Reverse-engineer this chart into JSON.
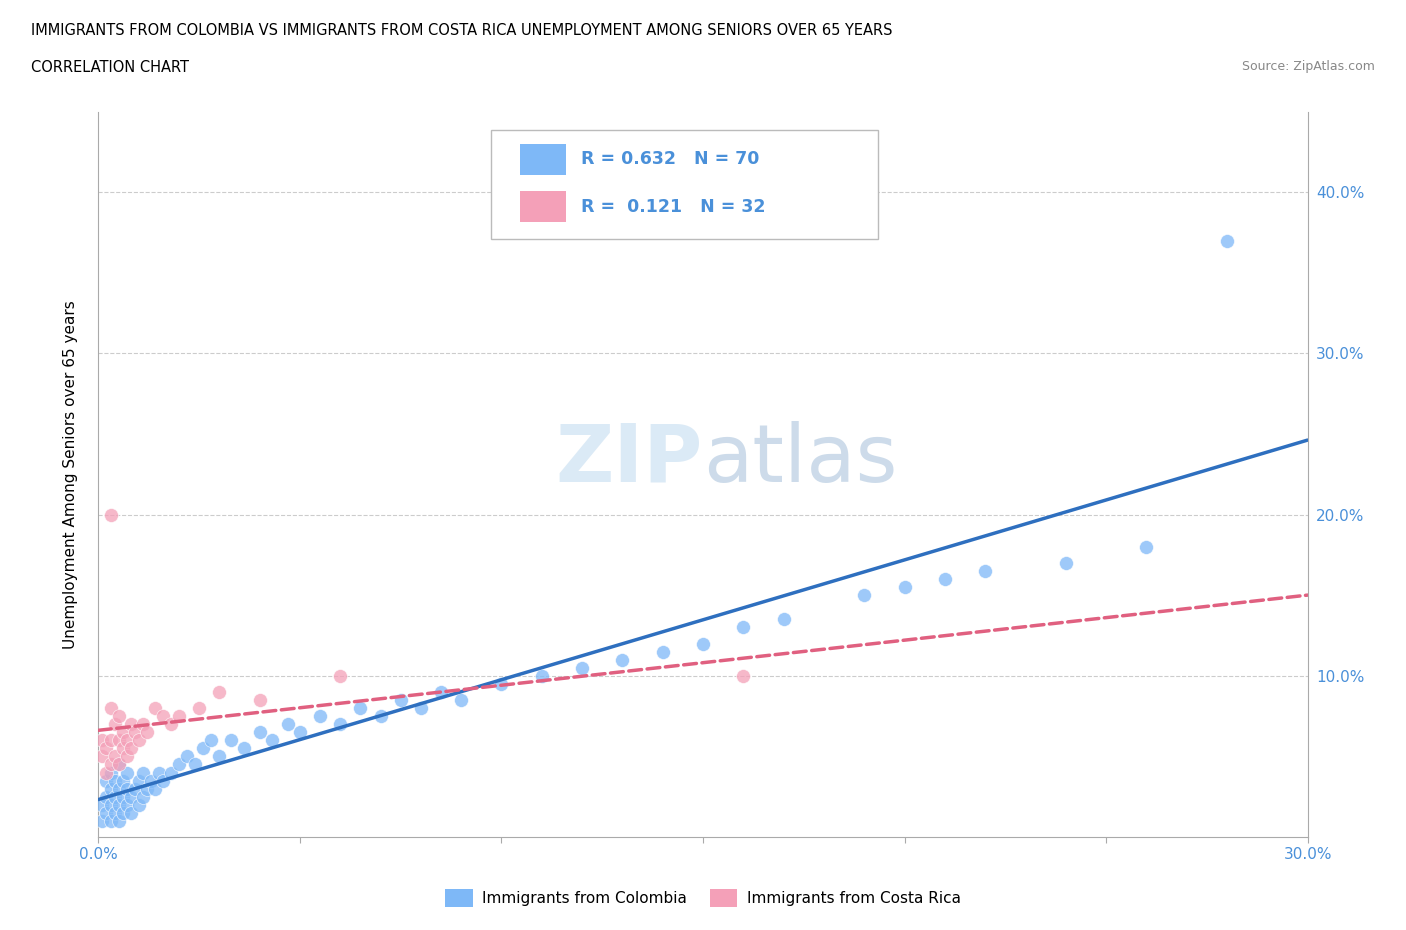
{
  "title_line1": "IMMIGRANTS FROM COLOMBIA VS IMMIGRANTS FROM COSTA RICA UNEMPLOYMENT AMONG SENIORS OVER 65 YEARS",
  "title_line2": "CORRELATION CHART",
  "source_text": "Source: ZipAtlas.com",
  "ylabel": "Unemployment Among Seniors over 65 years",
  "xlim": [
    0.0,
    0.3
  ],
  "ylim": [
    0.0,
    0.45
  ],
  "colombia_color": "#7EB8F7",
  "costa_rica_color": "#F4A0B8",
  "colombia_line_color": "#2E6FBF",
  "costa_rica_line_color": "#E06080",
  "text_color": "#4A90D9",
  "R_colombia": 0.632,
  "N_colombia": 70,
  "R_costa_rica": 0.121,
  "N_costa_rica": 32,
  "colombia_scatter_x": [
    0.001,
    0.001,
    0.002,
    0.002,
    0.002,
    0.003,
    0.003,
    0.003,
    0.003,
    0.004,
    0.004,
    0.004,
    0.005,
    0.005,
    0.005,
    0.005,
    0.006,
    0.006,
    0.006,
    0.007,
    0.007,
    0.007,
    0.008,
    0.008,
    0.009,
    0.01,
    0.01,
    0.011,
    0.011,
    0.012,
    0.013,
    0.014,
    0.015,
    0.016,
    0.018,
    0.02,
    0.022,
    0.024,
    0.026,
    0.028,
    0.03,
    0.033,
    0.036,
    0.04,
    0.043,
    0.047,
    0.05,
    0.055,
    0.06,
    0.065,
    0.07,
    0.075,
    0.08,
    0.085,
    0.09,
    0.1,
    0.11,
    0.12,
    0.13,
    0.14,
    0.15,
    0.16,
    0.17,
    0.19,
    0.2,
    0.21,
    0.22,
    0.24,
    0.26,
    0.28
  ],
  "colombia_scatter_y": [
    0.01,
    0.02,
    0.015,
    0.025,
    0.035,
    0.01,
    0.02,
    0.03,
    0.04,
    0.015,
    0.025,
    0.035,
    0.01,
    0.02,
    0.03,
    0.045,
    0.015,
    0.025,
    0.035,
    0.02,
    0.03,
    0.04,
    0.015,
    0.025,
    0.03,
    0.02,
    0.035,
    0.025,
    0.04,
    0.03,
    0.035,
    0.03,
    0.04,
    0.035,
    0.04,
    0.045,
    0.05,
    0.045,
    0.055,
    0.06,
    0.05,
    0.06,
    0.055,
    0.065,
    0.06,
    0.07,
    0.065,
    0.075,
    0.07,
    0.08,
    0.075,
    0.085,
    0.08,
    0.09,
    0.085,
    0.095,
    0.1,
    0.105,
    0.11,
    0.115,
    0.12,
    0.13,
    0.135,
    0.15,
    0.155,
    0.16,
    0.165,
    0.17,
    0.18,
    0.37
  ],
  "costa_rica_scatter_x": [
    0.001,
    0.001,
    0.002,
    0.002,
    0.003,
    0.003,
    0.003,
    0.004,
    0.004,
    0.005,
    0.005,
    0.005,
    0.006,
    0.006,
    0.007,
    0.007,
    0.008,
    0.008,
    0.009,
    0.01,
    0.011,
    0.012,
    0.014,
    0.016,
    0.018,
    0.02,
    0.025,
    0.03,
    0.04,
    0.06,
    0.16,
    0.003
  ],
  "costa_rica_scatter_y": [
    0.05,
    0.06,
    0.04,
    0.055,
    0.045,
    0.06,
    0.08,
    0.05,
    0.07,
    0.045,
    0.06,
    0.075,
    0.055,
    0.065,
    0.05,
    0.06,
    0.055,
    0.07,
    0.065,
    0.06,
    0.07,
    0.065,
    0.08,
    0.075,
    0.07,
    0.075,
    0.08,
    0.09,
    0.085,
    0.1,
    0.1,
    0.2
  ]
}
